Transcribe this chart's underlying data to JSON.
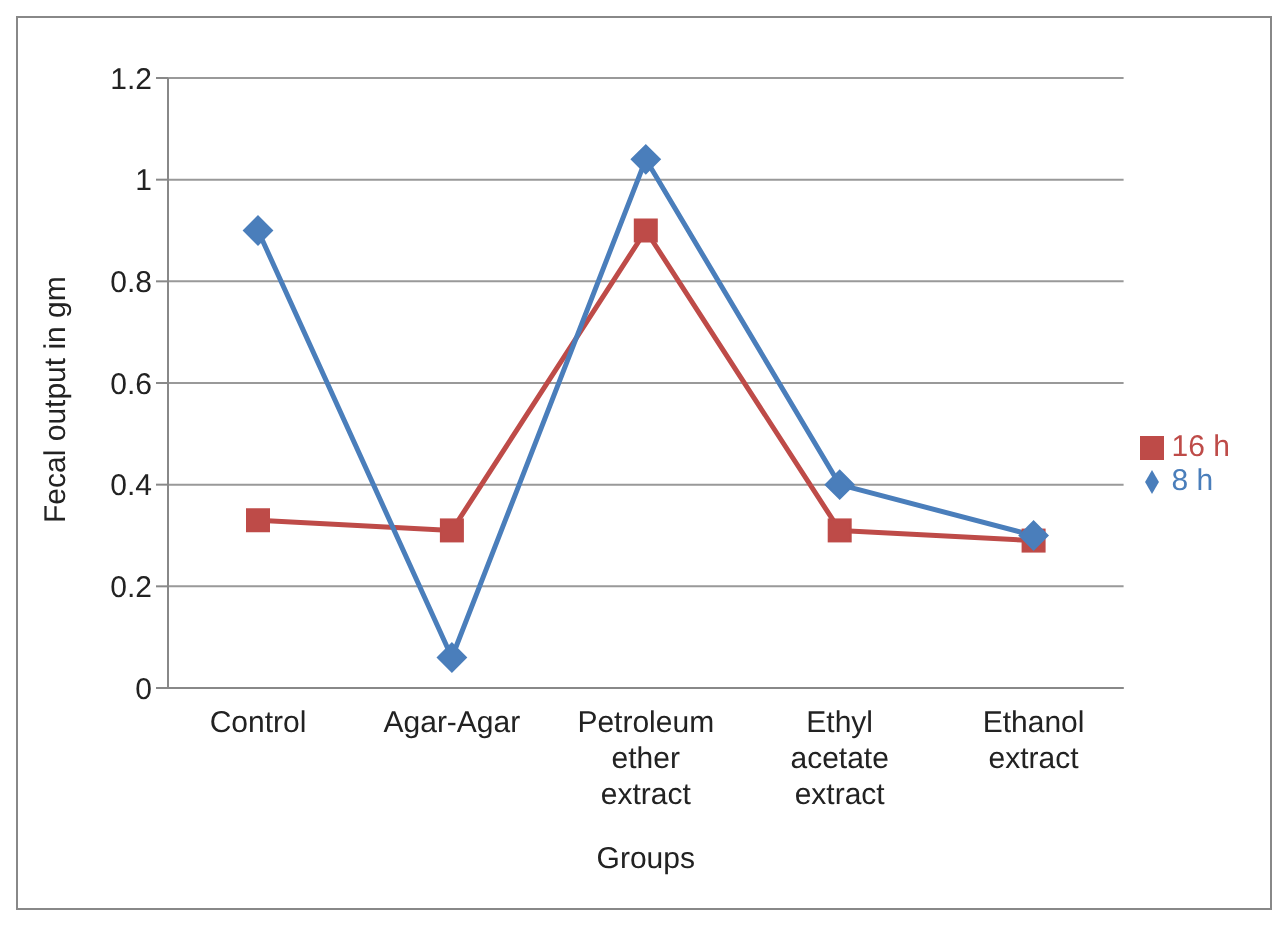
{
  "chart_data": {
    "type": "line",
    "xlabel": "Groups",
    "ylabel": "Fecal output in gm",
    "categories": [
      "Control",
      "Agar-Agar",
      "Petroleum ether extract",
      "Ethyl acetate extract",
      "Ethanol extract"
    ],
    "series": [
      {
        "name": "8 h",
        "color": "#4a7ebb",
        "marker": "diamond",
        "values": [
          0.9,
          0.06,
          1.04,
          0.4,
          0.3
        ]
      },
      {
        "name": "16 h",
        "color": "#be4b48",
        "marker": "square",
        "values": [
          0.33,
          0.31,
          0.9,
          0.31,
          0.29
        ]
      }
    ],
    "ylim": [
      0,
      1.2
    ],
    "yticks": [
      0,
      0.2,
      0.4,
      0.6,
      0.8,
      1,
      1.2
    ],
    "grid": "y",
    "legend": "right",
    "line_style": "solid"
  }
}
